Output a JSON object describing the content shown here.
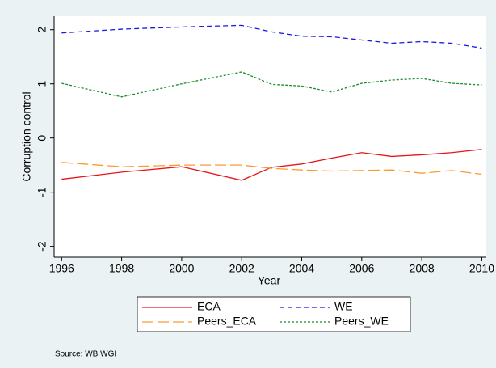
{
  "chart_data": {
    "type": "line",
    "x_label": "Year",
    "y_label": "Corruption control",
    "note": "Source: WB WGI",
    "x": [
      1996,
      1998,
      2000,
      2002,
      2003,
      2004,
      2005,
      2006,
      2007,
      2008,
      2009,
      2010
    ],
    "series": [
      {
        "name": "ECA",
        "color": "#e8141a",
        "dash": "none",
        "values": [
          -0.76,
          -0.63,
          -0.53,
          -0.78,
          -0.54,
          -0.48,
          -0.37,
          -0.27,
          -0.34,
          -0.31,
          -0.27,
          -0.21
        ]
      },
      {
        "name": "WE",
        "color": "#1a1ae6",
        "dash": "6 4",
        "values": [
          1.94,
          2.01,
          2.05,
          2.08,
          1.96,
          1.88,
          1.87,
          1.81,
          1.75,
          1.78,
          1.75,
          1.66
        ]
      },
      {
        "name": "Peers_ECA",
        "color": "#ff9a2e",
        "dash": "14 5",
        "values": [
          -0.45,
          -0.53,
          -0.5,
          -0.5,
          -0.56,
          -0.59,
          -0.61,
          -0.6,
          -0.59,
          -0.65,
          -0.6,
          -0.67
        ]
      },
      {
        "name": "Peers_WE",
        "color": "#1a8a2a",
        "dash": "3 2",
        "values": [
          1.01,
          0.76,
          1.0,
          1.22,
          0.99,
          0.96,
          0.85,
          1.01,
          1.07,
          1.1,
          1.01,
          0.98
        ]
      }
    ],
    "xlim": [
      1995.75,
      2010.15
    ],
    "ylim": [
      -2.2,
      2.25
    ],
    "xticks": [
      1996,
      1998,
      2000,
      2002,
      2004,
      2006,
      2008,
      2010
    ],
    "yticks": [
      -2,
      -1,
      0,
      1,
      2
    ]
  }
}
